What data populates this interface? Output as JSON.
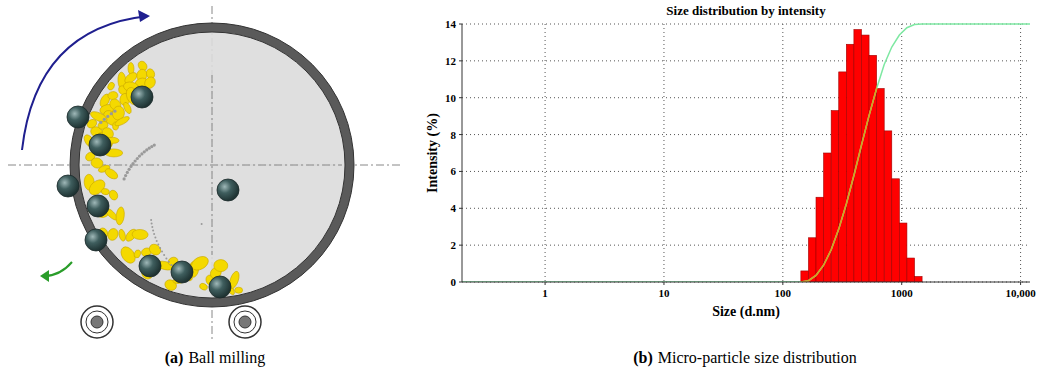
{
  "diagram": {
    "label": "(a)",
    "caption": "Ball milling"
  },
  "chart_data": {
    "label": "(b)",
    "caption": "Micro-particle size distribution",
    "type": "histogram",
    "title": "Size distribution by intensity",
    "x_label": "Size (d.nm)",
    "y_label": "Intensity (%)",
    "log": "x",
    "grid": true,
    "xlim": [
      0.2,
      12000
    ],
    "ylim": [
      0,
      14
    ],
    "xticks": [
      1,
      10,
      100,
      1000,
      {
        "value": 10000,
        "label": "10,000"
      }
    ],
    "yticks": [
      0,
      2,
      4,
      6,
      8,
      10,
      12,
      14
    ],
    "bins": [
      141.8,
      164.2,
      190.1,
      220.2,
      255.0,
      295.3,
      342.0,
      396.1,
      458.7,
      531.2,
      615.1,
      712.4,
      825.0,
      955.4,
      1106,
      1281,
      1484
    ],
    "values": [
      0.6,
      2.4,
      4.6,
      7.0,
      9.3,
      11.4,
      12.9,
      13.7,
      13.4,
      12.3,
      10.5,
      8.2,
      5.6,
      3.2,
      1.3,
      0.3
    ],
    "color": "#ff0000",
    "series": [
      {
        "type": "line",
        "color": "#7ee8a2",
        "x": [
          0.2,
          141.8,
          164.2,
          190.1,
          220.2,
          255.0,
          295.3,
          342.0,
          396.1,
          458.7,
          531.2,
          615.1,
          712.4,
          825.0,
          955.4,
          1106,
          1281,
          1484,
          12000
        ],
        "values": [
          0,
          0,
          0.07,
          0.36,
          0.91,
          1.75,
          2.87,
          4.23,
          5.78,
          7.43,
          9.03,
          10.5,
          11.8,
          12.75,
          13.4,
          13.8,
          13.97,
          14,
          14
        ]
      }
    ]
  }
}
